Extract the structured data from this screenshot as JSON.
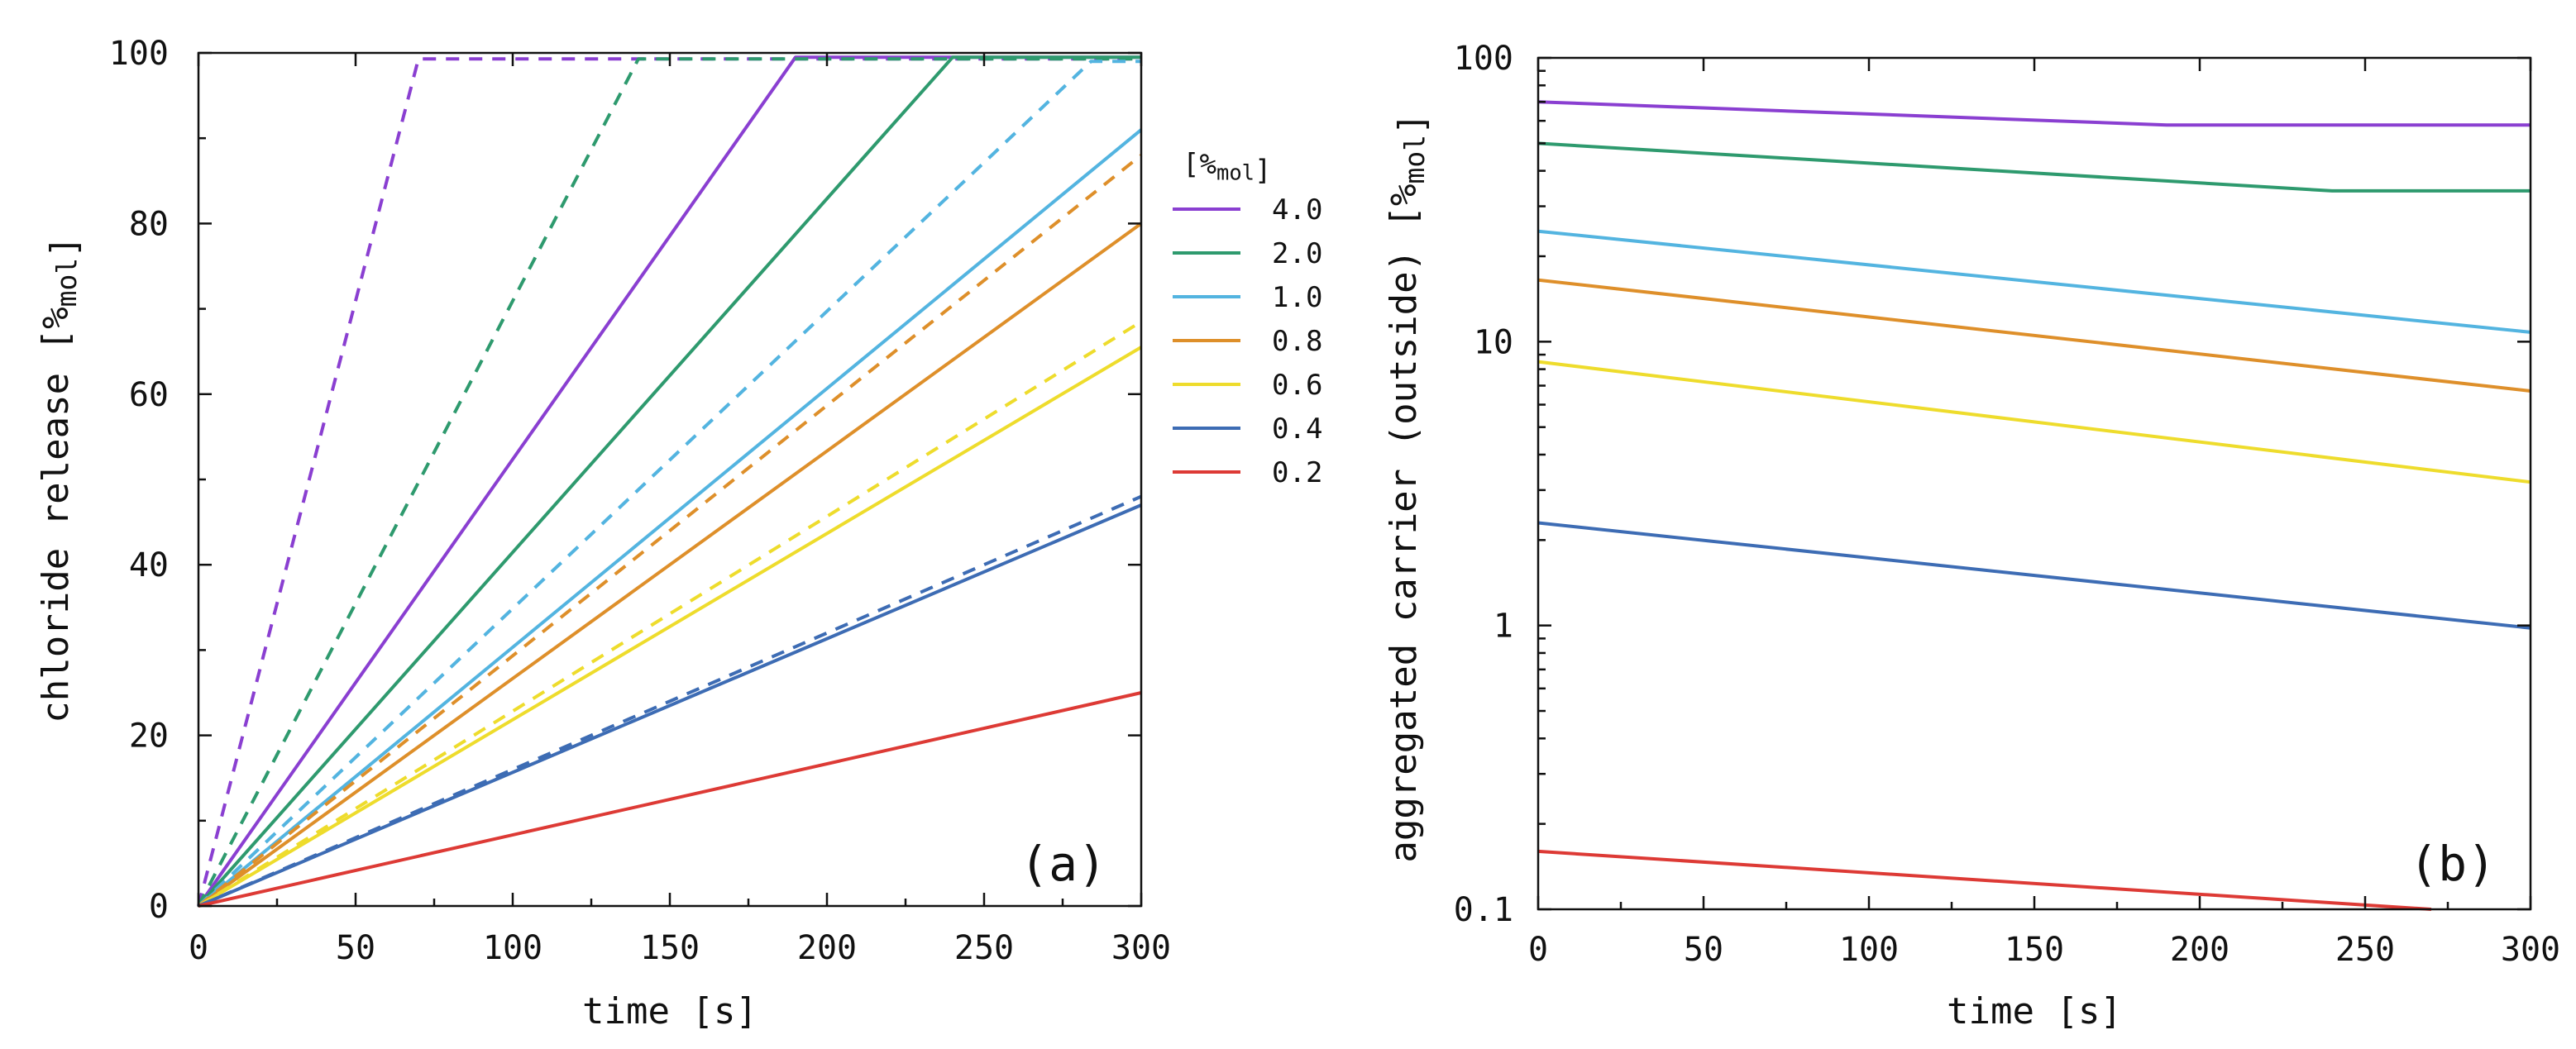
{
  "colors": {
    "4.0": "#8a3fd1",
    "2.0": "#2e9a6e",
    "1.0": "#53b4e0",
    "0.8": "#de8f2a",
    "0.6": "#eedc2c",
    "0.4": "#3d6cb4",
    "0.2": "#dd3a35"
  },
  "chart_data": [
    {
      "type": "line",
      "panel_label": "(a)",
      "title": "",
      "xlabel": "time [s]",
      "ylabel": "chloride release [%mol]",
      "xlim": [
        0,
        300
      ],
      "ylim": [
        0,
        100
      ],
      "xticks": [
        0,
        50,
        100,
        150,
        200,
        250,
        300
      ],
      "yticks": [
        0,
        20,
        40,
        60,
        80,
        100
      ],
      "legend": {
        "title": "[%mol]",
        "placement": "right-outside",
        "entries": [
          "4.0",
          "2.0",
          "1.0",
          "0.8",
          "0.6",
          "0.4",
          "0.2"
        ]
      },
      "series": [
        {
          "name": "4.0",
          "style": "solid",
          "x": [
            0,
            190,
            300
          ],
          "y": [
            0,
            99.5,
            99.5
          ]
        },
        {
          "name": "4.0",
          "style": "dashed",
          "x": [
            0,
            70,
            300
          ],
          "y": [
            0,
            99.3,
            99.3
          ]
        },
        {
          "name": "2.0",
          "style": "solid",
          "x": [
            0,
            240,
            300
          ],
          "y": [
            0,
            99.5,
            99.5
          ]
        },
        {
          "name": "2.0",
          "style": "dashed",
          "x": [
            0,
            140,
            300
          ],
          "y": [
            0,
            99.3,
            99.3
          ]
        },
        {
          "name": "1.0",
          "style": "solid",
          "x": [
            0,
            300
          ],
          "y": [
            0,
            91
          ]
        },
        {
          "name": "1.0",
          "style": "dashed",
          "x": [
            0,
            284,
            300
          ],
          "y": [
            0,
            99.0,
            99.0
          ]
        },
        {
          "name": "0.8",
          "style": "solid",
          "x": [
            0,
            300
          ],
          "y": [
            0,
            80
          ]
        },
        {
          "name": "0.8",
          "style": "dashed",
          "x": [
            0,
            300
          ],
          "y": [
            0,
            88
          ]
        },
        {
          "name": "0.6",
          "style": "solid",
          "x": [
            0,
            300
          ],
          "y": [
            0,
            65.5
          ]
        },
        {
          "name": "0.6",
          "style": "dashed",
          "x": [
            0,
            300
          ],
          "y": [
            0,
            68.5
          ]
        },
        {
          "name": "0.4",
          "style": "solid",
          "x": [
            0,
            300
          ],
          "y": [
            0,
            47
          ]
        },
        {
          "name": "0.4",
          "style": "dashed",
          "x": [
            0,
            300
          ],
          "y": [
            0,
            48
          ]
        },
        {
          "name": "0.2",
          "style": "solid",
          "x": [
            0,
            300
          ],
          "y": [
            0,
            25
          ]
        }
      ]
    },
    {
      "type": "line",
      "panel_label": "(b)",
      "title": "",
      "xlabel": "time [s]",
      "ylabel": "aggregated carrier (outside) [%mol]",
      "xlim": [
        0,
        300
      ],
      "ylim": [
        0.1,
        100
      ],
      "yscale": "log",
      "xticks": [
        0,
        50,
        100,
        150,
        200,
        250,
        300
      ],
      "yticks": [
        0.1,
        1,
        10,
        100
      ],
      "ytick_labels": [
        "0.1",
        "1",
        "10",
        "100"
      ],
      "series": [
        {
          "name": "4.0",
          "style": "solid",
          "x": [
            0,
            190,
            300
          ],
          "y": [
            70,
            58,
            58
          ]
        },
        {
          "name": "2.0",
          "style": "solid",
          "x": [
            0,
            240,
            300
          ],
          "y": [
            50,
            34,
            34
          ]
        },
        {
          "name": "1.0",
          "style": "solid",
          "x": [
            0,
            300
          ],
          "y": [
            24.5,
            10.8
          ]
        },
        {
          "name": "0.8",
          "style": "solid",
          "x": [
            0,
            300
          ],
          "y": [
            16.5,
            6.7
          ]
        },
        {
          "name": "0.6",
          "style": "solid",
          "x": [
            0,
            300
          ],
          "y": [
            8.5,
            3.2
          ]
        },
        {
          "name": "0.4",
          "style": "solid",
          "x": [
            0,
            300
          ],
          "y": [
            2.3,
            0.98
          ]
        },
        {
          "name": "0.2",
          "style": "solid",
          "x": [
            0,
            270
          ],
          "y": [
            0.16,
            0.1
          ]
        }
      ]
    }
  ]
}
